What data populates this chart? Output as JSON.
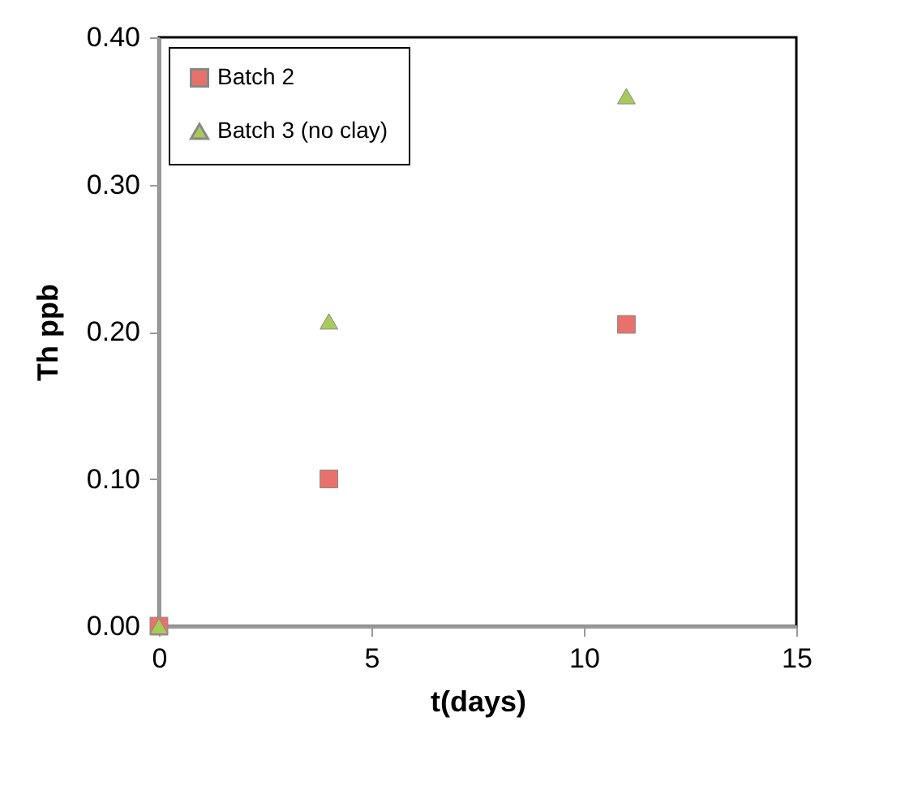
{
  "chart_data": {
    "type": "scatter",
    "xlabel": "t(days)",
    "ylabel": "Th ppb",
    "x": [
      0,
      4,
      11
    ],
    "series": [
      {
        "name": "Batch 2",
        "color": "#e8716b",
        "marker": "square",
        "values": [
          0,
          0.1,
          0.205
        ]
      },
      {
        "name": "Batch 3 (no clay)",
        "color": "#a9c95a",
        "marker": "triangle",
        "values": [
          0,
          0.207,
          0.36
        ]
      }
    ],
    "xlim": [
      0,
      15
    ],
    "xticks": [
      0,
      5,
      10,
      15
    ],
    "ylim": [
      0,
      0.4
    ],
    "yticks": [
      {
        "value": 0,
        "label": "0.00"
      },
      {
        "value": 0.1,
        "label": "0.10"
      },
      {
        "value": 0.2,
        "label": "0.20"
      },
      {
        "value": 0.3,
        "label": "0.30"
      },
      {
        "value": 0.4,
        "label": "0.40"
      }
    ],
    "legend": "top left",
    "grid": false
  }
}
